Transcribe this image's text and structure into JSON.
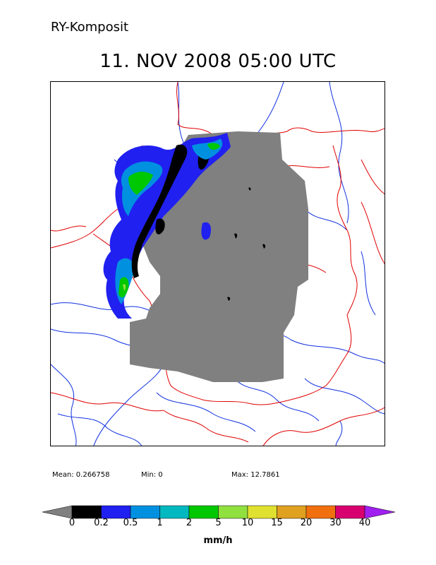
{
  "header": {
    "product": "RY-Komposit",
    "title": "11. NOV 2008   05:00 UTC"
  },
  "stats": {
    "mean": "Mean: 0.266758",
    "min": "Min: 0",
    "max": "Max: 12.7861"
  },
  "legend": {
    "unit": "mm/h",
    "below_color": "#808080",
    "above_color": "#a020f0",
    "bins": [
      {
        "label": "0",
        "color": "#000000"
      },
      {
        "label": "0.2",
        "color": "#2020f0"
      },
      {
        "label": "0.5",
        "color": "#0090e0"
      },
      {
        "label": "1",
        "color": "#00b8c0"
      },
      {
        "label": "2",
        "color": "#00c800"
      },
      {
        "label": "5",
        "color": "#90e040"
      },
      {
        "label": "10",
        "color": "#e0e030"
      },
      {
        "label": "15",
        "color": "#e0a020"
      },
      {
        "label": "20",
        "color": "#f07010"
      },
      {
        "label": "30",
        "color": "#d80070"
      },
      {
        "label": "40",
        "color": "#a020f0"
      }
    ]
  },
  "map": {
    "border_color": "#e00000",
    "river_color": "#1030e0",
    "no_precip_color": "#808080"
  }
}
